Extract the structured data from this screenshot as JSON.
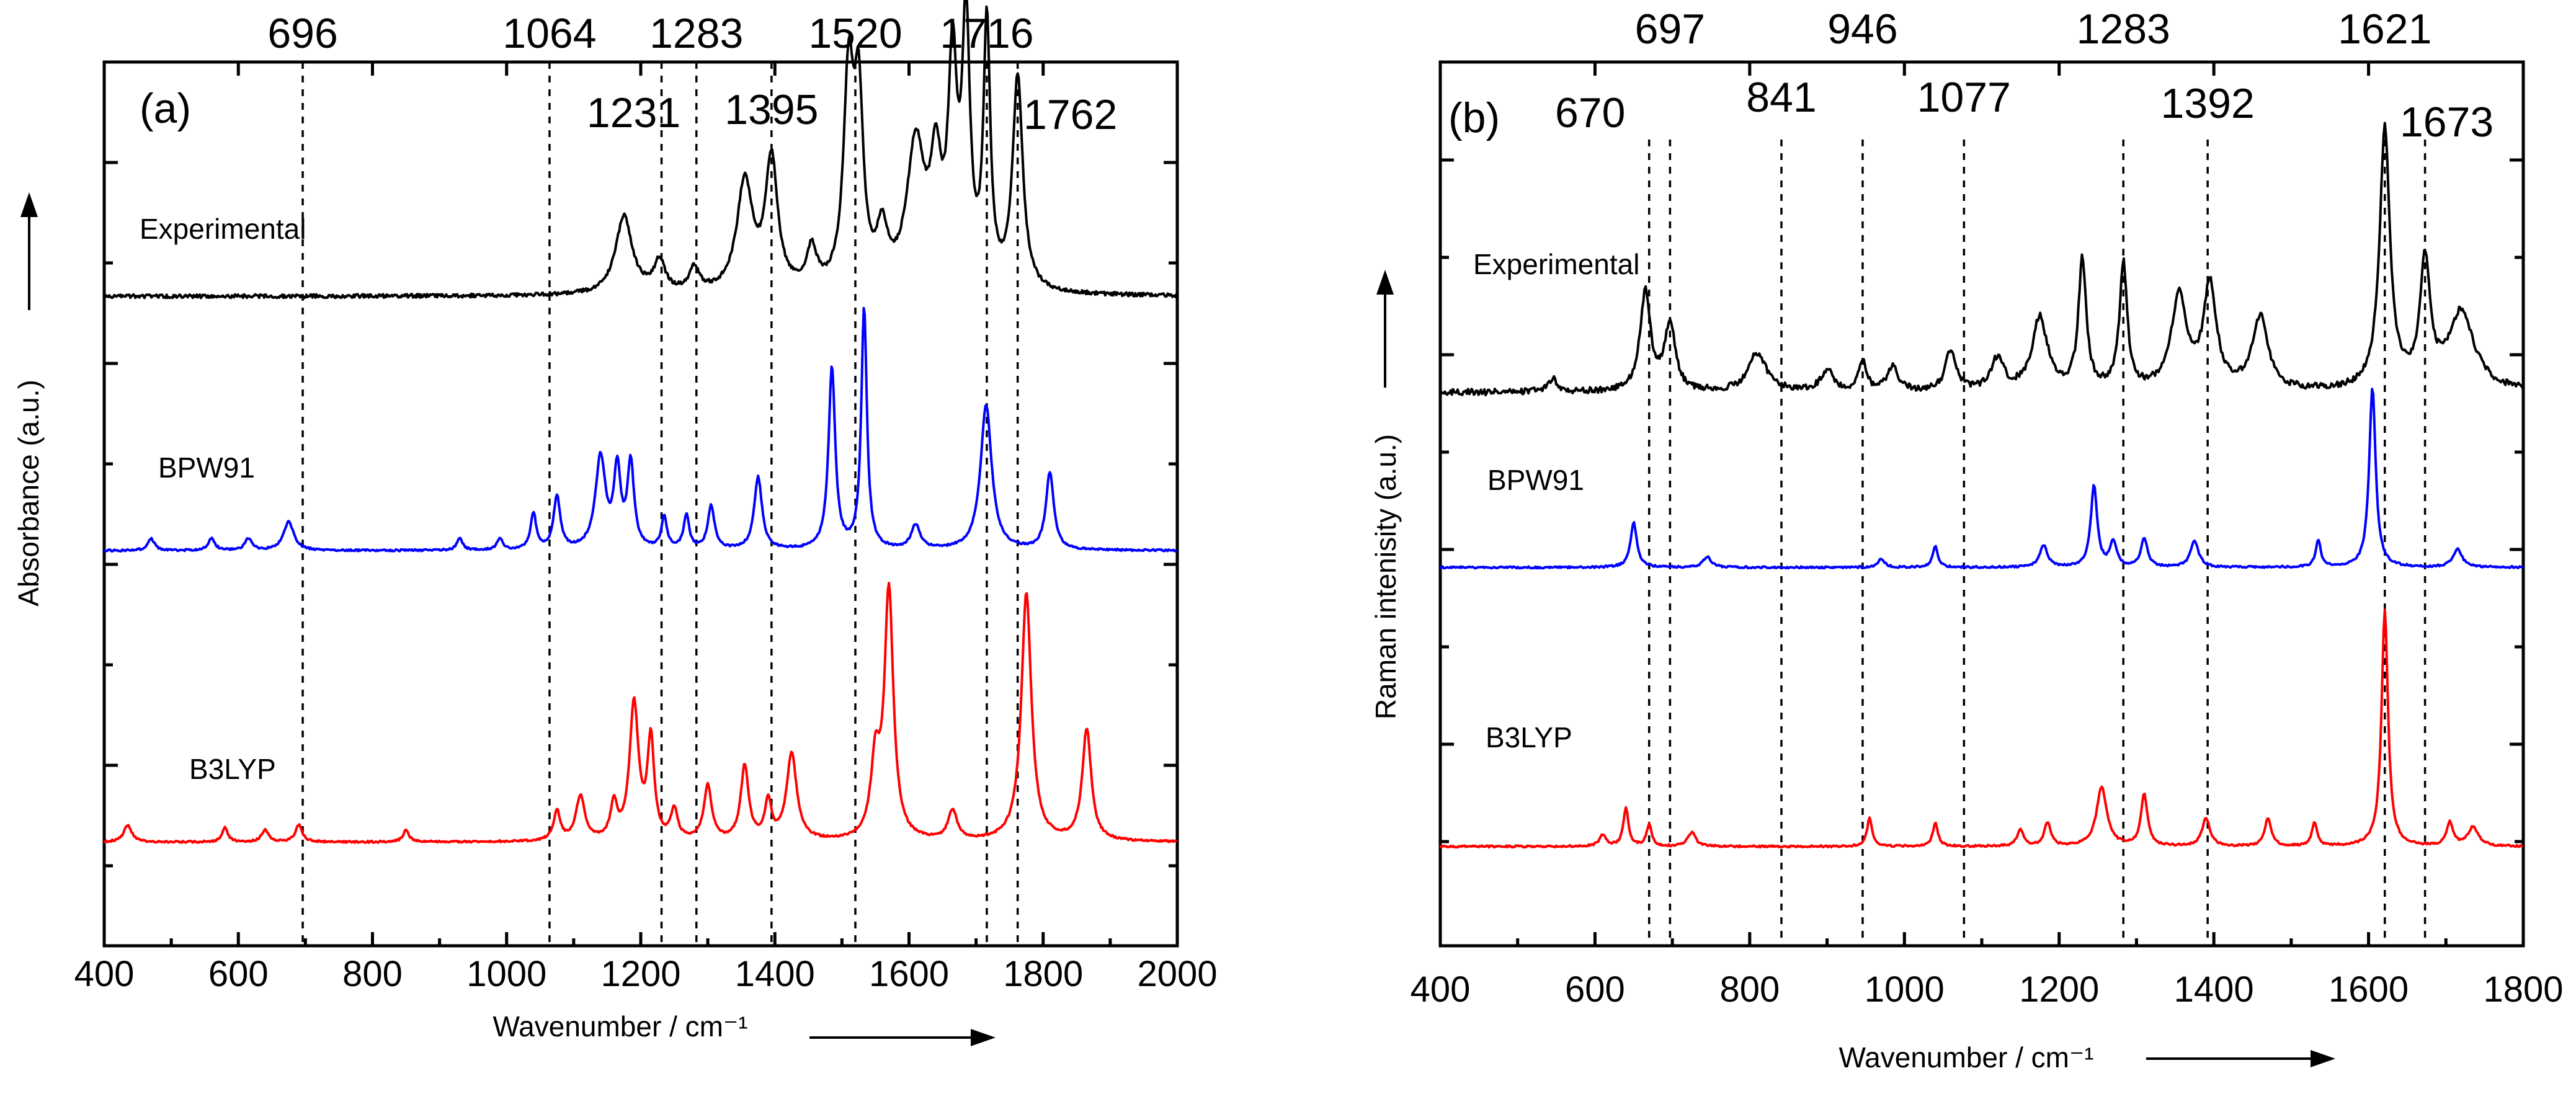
{
  "chart_data": [
    {
      "type": "line",
      "panel_label": "(a)",
      "xlabel": "Wavenumber / cm⁻¹",
      "ylabel": "Absorbance (a.u.)",
      "xlim": [
        400,
        2000
      ],
      "xticks": [
        400,
        600,
        800,
        1000,
        1200,
        1400,
        1600,
        1800,
        2000
      ],
      "reference_lines": [
        696,
        1064,
        1231,
        1283,
        1395,
        1520,
        1716,
        1762
      ],
      "top_labels": [
        "696",
        "1064",
        "1283",
        "1520",
        "1716"
      ],
      "inner_labels": [
        "1231",
        "1395",
        "1762"
      ],
      "series": [
        {
          "name": "Experimental",
          "color": "#000000",
          "baseline": 0.0,
          "peaks": [
            [
              1175,
              0.3,
              15
            ],
            [
              1228,
              0.12,
              10
            ],
            [
              1280,
              0.09,
              9
            ],
            [
              1355,
              0.42,
              14
            ],
            [
              1395,
              0.5,
              11
            ],
            [
              1455,
              0.15,
              9
            ],
            [
              1510,
              0.8,
              9
            ],
            [
              1525,
              0.68,
              8
            ],
            [
              1560,
              0.2,
              10
            ],
            [
              1610,
              0.55,
              16
            ],
            [
              1640,
              0.42,
              10
            ],
            [
              1665,
              0.82,
              8
            ],
            [
              1685,
              0.98,
              7
            ],
            [
              1716,
              1.0,
              6
            ],
            [
              1762,
              0.82,
              9
            ]
          ]
        },
        {
          "name": "BPW91",
          "color": "#0000ff",
          "baseline": 0.0,
          "peaks": [
            [
              470,
              0.05,
              6
            ],
            [
              560,
              0.05,
              6
            ],
            [
              615,
              0.05,
              6
            ],
            [
              675,
              0.12,
              9
            ],
            [
              930,
              0.05,
              5
            ],
            [
              990,
              0.05,
              5
            ],
            [
              1040,
              0.15,
              5
            ],
            [
              1075,
              0.22,
              6
            ],
            [
              1140,
              0.38,
              9
            ],
            [
              1165,
              0.32,
              6
            ],
            [
              1185,
              0.35,
              6
            ],
            [
              1235,
              0.13,
              5
            ],
            [
              1268,
              0.14,
              5
            ],
            [
              1305,
              0.18,
              6
            ],
            [
              1375,
              0.3,
              7
            ],
            [
              1485,
              0.75,
              6
            ],
            [
              1533,
              1.0,
              5
            ],
            [
              1610,
              0.1,
              8
            ],
            [
              1715,
              0.6,
              10
            ],
            [
              1810,
              0.32,
              7
            ]
          ]
        },
        {
          "name": "B3LYP",
          "color": "#ff0000",
          "baseline": 0.0,
          "peaks": [
            [
              435,
              0.07,
              7
            ],
            [
              580,
              0.06,
              5
            ],
            [
              640,
              0.05,
              6
            ],
            [
              690,
              0.07,
              6
            ],
            [
              850,
              0.05,
              5
            ],
            [
              1075,
              0.12,
              6
            ],
            [
              1110,
              0.18,
              8
            ],
            [
              1160,
              0.14,
              6
            ],
            [
              1190,
              0.55,
              8
            ],
            [
              1215,
              0.4,
              6
            ],
            [
              1250,
              0.12,
              6
            ],
            [
              1300,
              0.22,
              7
            ],
            [
              1355,
              0.3,
              7
            ],
            [
              1390,
              0.15,
              6
            ],
            [
              1425,
              0.35,
              9
            ],
            [
              1550,
              0.3,
              8
            ],
            [
              1570,
              1.0,
              8
            ],
            [
              1665,
              0.12,
              8
            ],
            [
              1775,
              1.0,
              9
            ],
            [
              1865,
              0.45,
              8
            ]
          ]
        }
      ]
    },
    {
      "type": "line",
      "panel_label": "(b)",
      "xlabel": "Wavenumber / cm⁻¹",
      "ylabel": "Raman intenisity (a.u.)",
      "xlim": [
        400,
        1800
      ],
      "xticks": [
        400,
        600,
        800,
        1000,
        1200,
        1400,
        1600,
        1800
      ],
      "reference_lines": [
        670,
        697,
        841,
        946,
        1077,
        1283,
        1392,
        1621,
        1673
      ],
      "top_labels": [
        "697",
        "946",
        "1283",
        "1621"
      ],
      "inner_labels": [
        "670",
        "841",
        "1077",
        "1392",
        "1673"
      ],
      "series": [
        {
          "name": "Experimental",
          "color": "#000000",
          "baseline": 0.0,
          "peaks": [
            [
              545,
              0.05,
              8
            ],
            [
              665,
              0.38,
              8
            ],
            [
              697,
              0.26,
              8
            ],
            [
              810,
              0.15,
              14
            ],
            [
              900,
              0.08,
              10
            ],
            [
              946,
              0.12,
              6
            ],
            [
              985,
              0.1,
              8
            ],
            [
              1060,
              0.16,
              8
            ],
            [
              1120,
              0.12,
              10
            ],
            [
              1175,
              0.28,
              12
            ],
            [
              1230,
              0.5,
              6
            ],
            [
              1283,
              0.48,
              6
            ],
            [
              1355,
              0.36,
              12
            ],
            [
              1395,
              0.4,
              10
            ],
            [
              1460,
              0.28,
              12
            ],
            [
              1621,
              1.0,
              8
            ],
            [
              1673,
              0.48,
              8
            ],
            [
              1720,
              0.3,
              20
            ]
          ]
        },
        {
          "name": "BPW91",
          "color": "#0000ff",
          "baseline": 0.0,
          "peaks": [
            [
              650,
              0.25,
              5
            ],
            [
              745,
              0.06,
              6
            ],
            [
              970,
              0.05,
              5
            ],
            [
              1040,
              0.12,
              4
            ],
            [
              1180,
              0.12,
              6
            ],
            [
              1245,
              0.45,
              5
            ],
            [
              1270,
              0.14,
              5
            ],
            [
              1310,
              0.16,
              5
            ],
            [
              1375,
              0.15,
              6
            ],
            [
              1535,
              0.15,
              4
            ],
            [
              1605,
              1.0,
              5
            ],
            [
              1715,
              0.1,
              7
            ]
          ]
        },
        {
          "name": "B3LYP",
          "color": "#ff0000",
          "baseline": 0.0,
          "peaks": [
            [
              610,
              0.05,
              5
            ],
            [
              640,
              0.16,
              4
            ],
            [
              670,
              0.09,
              4
            ],
            [
              725,
              0.06,
              6
            ],
            [
              955,
              0.12,
              4
            ],
            [
              1040,
              0.1,
              4
            ],
            [
              1150,
              0.07,
              5
            ],
            [
              1185,
              0.1,
              5
            ],
            [
              1255,
              0.25,
              8
            ],
            [
              1310,
              0.22,
              5
            ],
            [
              1390,
              0.12,
              6
            ],
            [
              1470,
              0.12,
              5
            ],
            [
              1530,
              0.1,
              4
            ],
            [
              1621,
              1.0,
              5
            ],
            [
              1705,
              0.1,
              5
            ],
            [
              1735,
              0.08,
              8
            ]
          ]
        }
      ]
    }
  ]
}
